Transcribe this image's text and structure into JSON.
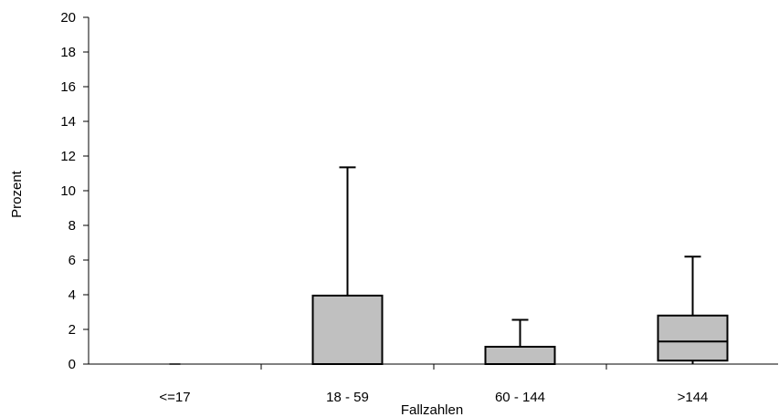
{
  "chart_data": {
    "type": "box",
    "title": "",
    "xlabel": "Fallzahlen",
    "ylabel": "Prozent",
    "ylim": [
      0,
      20
    ],
    "yticks": [
      0,
      2,
      4,
      6,
      8,
      10,
      12,
      14,
      16,
      18,
      20
    ],
    "ytick_labels": [
      "0",
      "2",
      "4",
      "6",
      "8",
      "10",
      "12",
      "14",
      "16",
      "18",
      "20"
    ],
    "categories": [
      "<=17",
      "18 - 59",
      "60 - 144",
      ">144"
    ],
    "boxes": [
      {
        "min": 0,
        "q1": 0,
        "median": 0,
        "q3": 0,
        "max": 0
      },
      {
        "min": 0,
        "q1": 0,
        "median": 0,
        "q3": 3.95,
        "max": 11.35
      },
      {
        "min": 0,
        "q1": 0,
        "median": 0,
        "q3": 1.0,
        "max": 2.55
      },
      {
        "min": 0,
        "q1": 0.2,
        "median": 1.3,
        "q3": 2.8,
        "max": 6.2
      }
    ],
    "box_color": "#c0c0c0",
    "grid": false,
    "legend": "none"
  }
}
